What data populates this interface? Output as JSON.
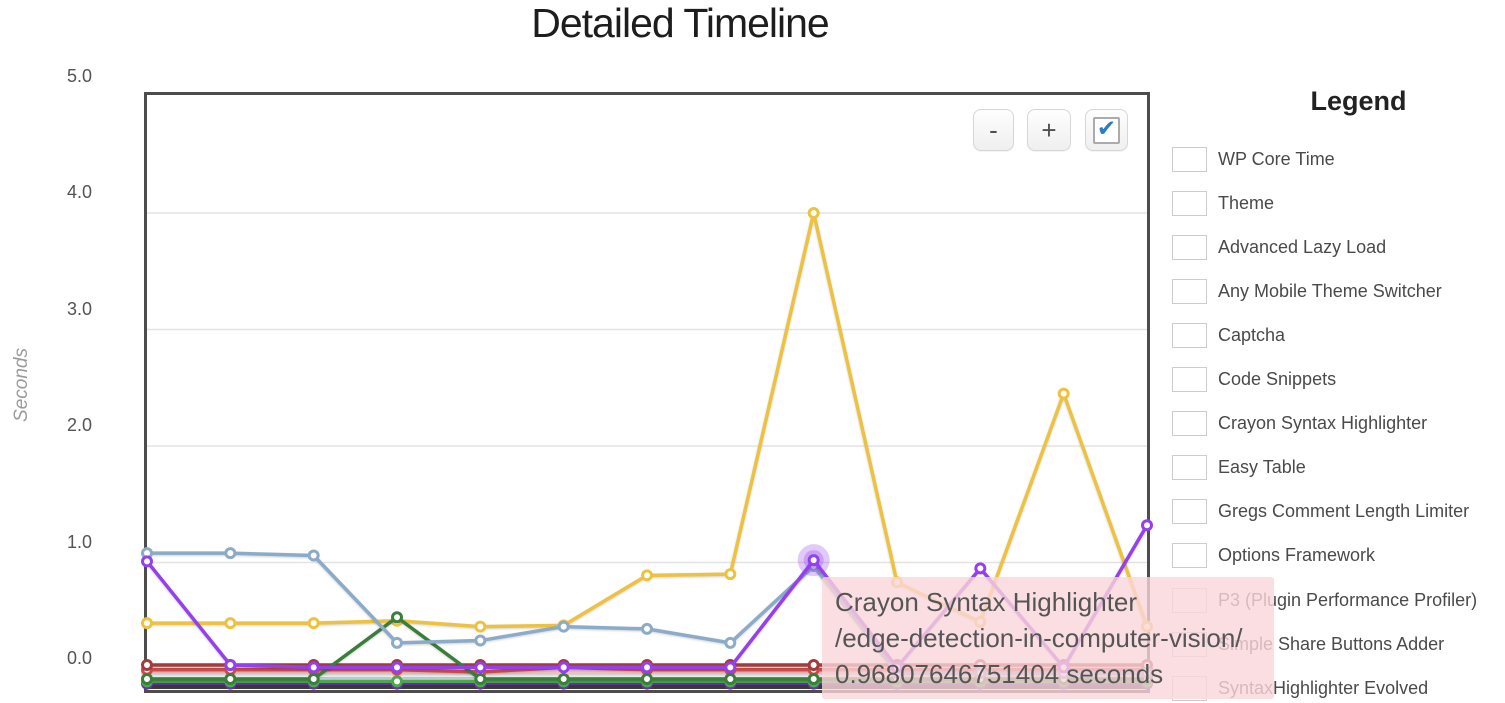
{
  "title": "Detailed Timeline",
  "y_axis": {
    "label": "Seconds",
    "ticks": [
      {
        "label": "5.0",
        "value": 5.0
      },
      {
        "label": "4.0",
        "value": 4.0
      },
      {
        "label": "3.0",
        "value": 3.0
      },
      {
        "label": "2.0",
        "value": 2.0
      },
      {
        "label": "1.0",
        "value": 1.0
      },
      {
        "label": "0.0",
        "value": 0.0
      }
    ]
  },
  "toolbar": {
    "zoom_out_label": "-",
    "zoom_in_label": "+",
    "checkbox_checked": true,
    "check_glyph": "✔"
  },
  "legend": {
    "heading": "Legend"
  },
  "tooltip": {
    "series_name": "Crayon Syntax Highlighter",
    "page_url": "/edge-detection-in-computer-vision/",
    "value_text": "0.96807646751404 seconds"
  },
  "chart_data": {
    "type": "line",
    "title": "Detailed Timeline",
    "ylabel": "Seconds",
    "ylim": [
      -0.1,
      5.0
    ],
    "yticks": [
      0.0,
      1.0,
      2.0,
      3.0,
      4.0,
      5.0
    ],
    "num_points": 13,
    "x_labels_shown": false,
    "grid": "horizontal",
    "legend_position": "right",
    "series": [
      {
        "name": "WP Core Time",
        "color": "#edc240",
        "values": [
          0.48,
          0.48,
          0.48,
          0.5,
          0.45,
          0.46,
          0.89,
          0.9,
          4.0,
          0.83,
          0.49,
          2.45,
          0.45
        ]
      },
      {
        "name": "Theme",
        "color": "#afd8f8",
        "values": [
          0.02,
          0.02,
          0.02,
          0.02,
          0.02,
          0.02,
          0.02,
          0.02,
          0.02,
          0.02,
          0.02,
          0.02,
          0.02
        ]
      },
      {
        "name": "Advanced Lazy Load",
        "color": "#cb4b4b",
        "values": [
          0.08,
          0.08,
          0.08,
          0.08,
          0.06,
          0.1,
          0.08,
          0.08,
          0.08,
          0.08,
          0.08,
          0.08,
          0.08
        ]
      },
      {
        "name": "Any Mobile Theme Switcher",
        "color": "#4da74d",
        "values": [
          -0.02,
          -0.02,
          -0.02,
          -0.02,
          -0.02,
          -0.02,
          -0.02,
          -0.02,
          -0.02,
          -0.02,
          -0.02,
          -0.02,
          -0.02
        ]
      },
      {
        "name": "Captcha",
        "color": "#9440ed",
        "values": [
          1.01,
          0.12,
          0.1,
          0.1,
          0.1,
          0.1,
          0.1,
          0.1,
          1.02,
          0.1,
          0.95,
          0.1,
          1.32
        ]
      },
      {
        "name": "Code Snippets",
        "color": "#b08f2a",
        "values": [
          -0.03,
          -0.03,
          -0.03,
          -0.03,
          -0.03,
          -0.03,
          -0.03,
          -0.03,
          -0.03,
          -0.03,
          -0.03,
          -0.03,
          -0.03
        ]
      },
      {
        "name": "Crayon Syntax Highlighter",
        "color": "#8cabc8",
        "values": [
          1.08,
          1.08,
          1.06,
          0.31,
          0.33,
          0.45,
          0.43,
          0.31,
          0.97,
          0.05,
          0.05,
          0.05,
          0.05
        ]
      },
      {
        "name": "Easy Table",
        "color": "#a23c3c",
        "values": [
          0.12,
          0.12,
          0.12,
          0.12,
          0.12,
          0.12,
          0.12,
          0.12,
          0.12,
          0.12,
          0.12,
          0.12,
          0.12
        ]
      },
      {
        "name": "Gregs Comment Length Limiter",
        "color": "#3b7d3b",
        "values": [
          0.0,
          0.0,
          0.0,
          0.53,
          0.0,
          0.0,
          0.0,
          0.0,
          0.0,
          0.0,
          0.0,
          0.0,
          0.0
        ]
      },
      {
        "name": "Options Framework",
        "color": "#6c2fb0",
        "values": [
          -0.04,
          -0.04,
          -0.04,
          -0.04,
          -0.04,
          -0.04,
          -0.04,
          -0.04,
          -0.04,
          -0.04,
          -0.04,
          -0.04,
          -0.04
        ]
      },
      {
        "name": "P3 (Plugin Performance Profiler)",
        "color": "#fbe8ba",
        "values": [
          0.05,
          0.05,
          0.05,
          0.05,
          0.05,
          0.05,
          0.05,
          0.05,
          0.05,
          0.05,
          0.05,
          0.05,
          0.05
        ]
      },
      {
        "name": "Simple Share Buttons Adder",
        "color": "#e8efec",
        "values": [
          0.03,
          0.03,
          0.03,
          0.03,
          0.03,
          0.03,
          0.03,
          0.03,
          0.03,
          0.03,
          0.03,
          0.03,
          0.03
        ]
      },
      {
        "name": "SyntaxHighlighter Evolved",
        "color": "#f6bfc3",
        "values": [
          0.06,
          0.06,
          0.06,
          0.06,
          0.06,
          0.06,
          0.06,
          0.06,
          0.06,
          0.06,
          0.06,
          0.06,
          0.06
        ]
      }
    ],
    "highlight": {
      "series": "Crayon Syntax Highlighter",
      "point_index": 8,
      "seconds": 0.96807646751404,
      "page": "/edge-detection-in-computer-vision/",
      "glow_color": "#9440ed"
    }
  }
}
